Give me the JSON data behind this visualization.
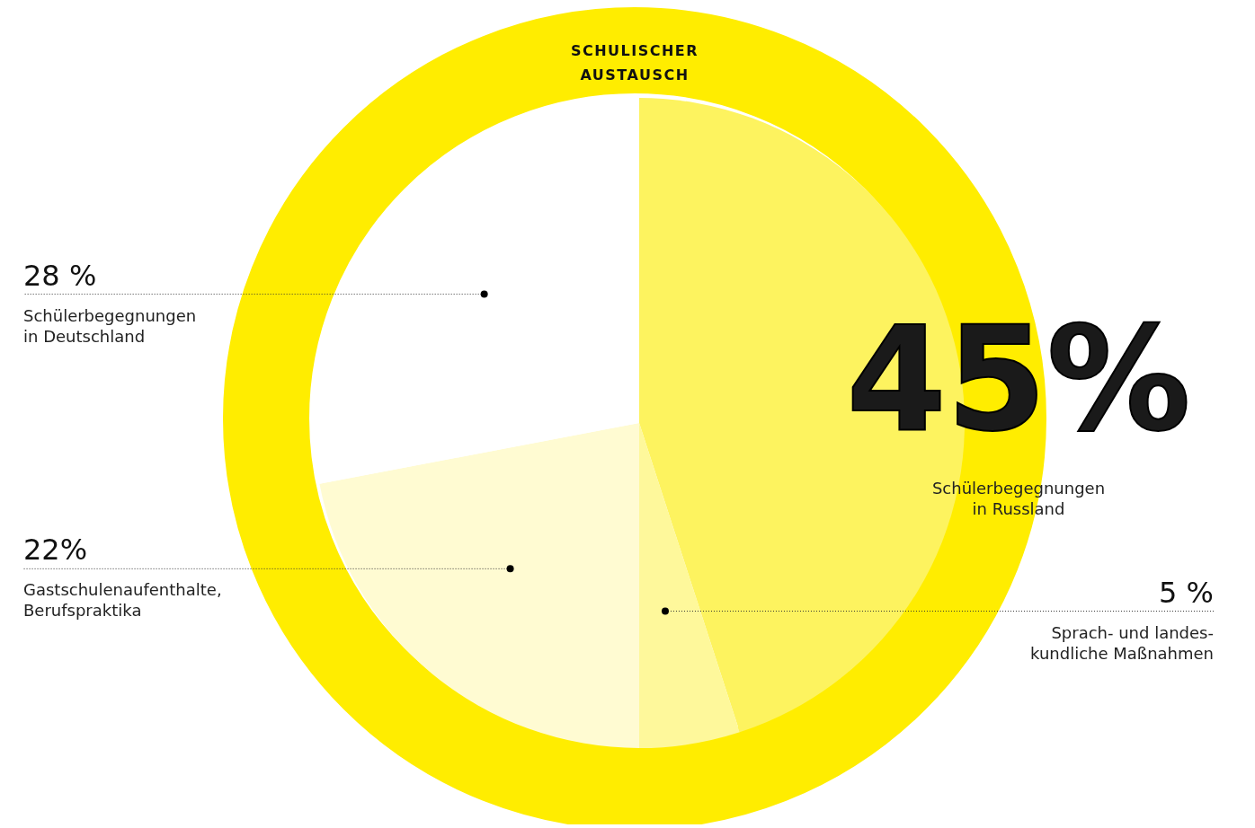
{
  "chart_data": {
    "type": "pie",
    "title": "SCHULISCHER\nAUSTAUSCH",
    "categories": [
      "Schülerbegegnungen\nin Russland",
      "Sprach- und landes-\nkundliche Maßnahmen",
      "Gastschulenaufenthalte,\nBerufspraktika",
      "Schülerbegegnungen\nin Deutschland"
    ],
    "values": [
      45,
      5,
      22,
      28
    ],
    "value_labels": [
      "45%",
      "5 %",
      "22%",
      "28 %"
    ],
    "colors": [
      "#fdf35f",
      "#fef89b",
      "#fffbd2",
      "#ffffff"
    ]
  }
}
